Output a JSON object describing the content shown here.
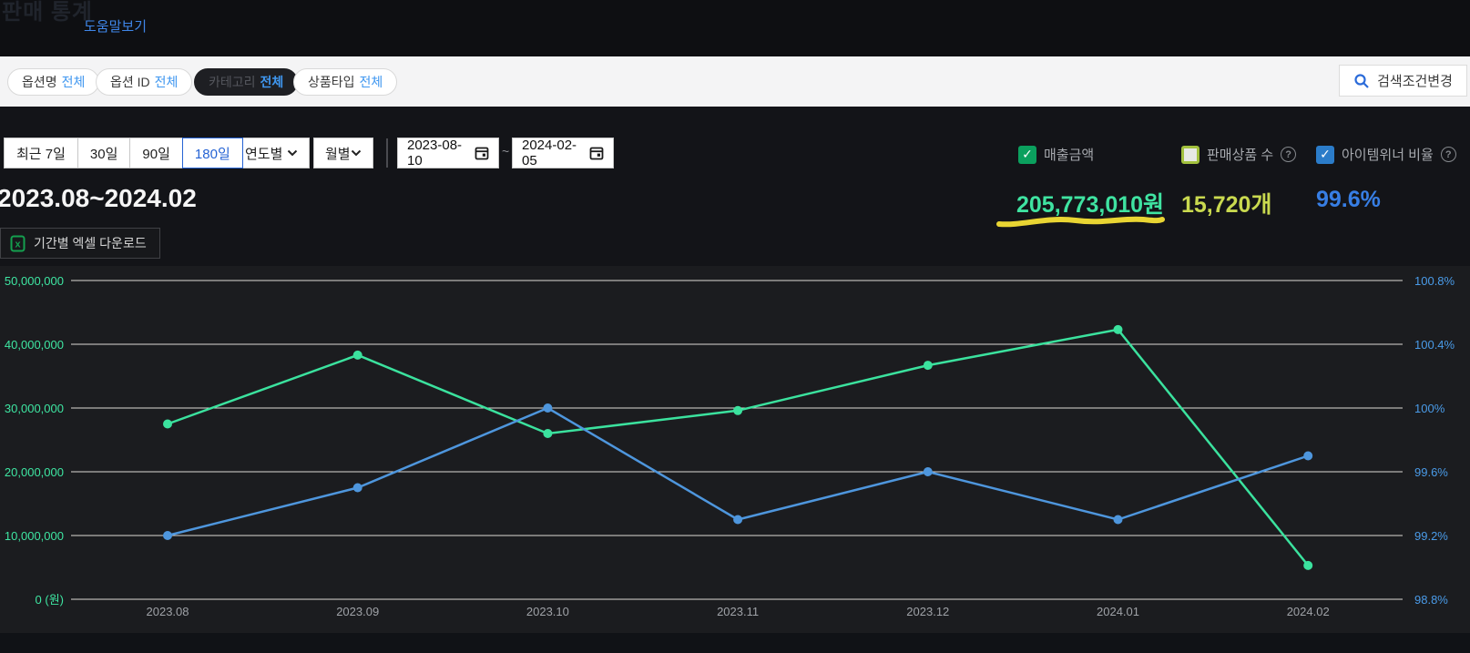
{
  "header": {
    "title": "판매 통계",
    "help_link": "도움말보기"
  },
  "filter_bar": {
    "pills": [
      {
        "label": "옵션명",
        "value": "전체",
        "selected": false
      },
      {
        "label": "옵션 ID",
        "value": "전체",
        "selected": false
      },
      {
        "label": "카테고리",
        "value": "전체",
        "selected": true
      },
      {
        "label": "상품타입",
        "value": "전체",
        "selected": false
      }
    ],
    "search_button": "검색조건변경"
  },
  "controls": {
    "range_buttons": [
      {
        "label": "최근 7일",
        "selected": false
      },
      {
        "label": "30일",
        "selected": false
      },
      {
        "label": "90일",
        "selected": false
      },
      {
        "label": "180일",
        "selected": true
      }
    ],
    "dropdowns": [
      {
        "label": "연도별"
      },
      {
        "label": "월별"
      }
    ],
    "date_from": "2023-08-10",
    "date_separator": "~",
    "date_to": "2024-02-05",
    "legend": [
      {
        "label": "매출금액",
        "checked": true,
        "color": "#0ba05e",
        "has_help": false
      },
      {
        "label": "판매상품 수",
        "checked": false,
        "color": "#a3c13e",
        "has_help": true
      },
      {
        "label": "아이템위너 비율",
        "checked": true,
        "color": "#2b7cc9",
        "has_help": true
      }
    ],
    "help_icon": "?"
  },
  "summary": {
    "period": "2023.08~2024.02",
    "stats": [
      {
        "value": "205,773,010원",
        "color": "#3fe3a1",
        "underlined": true
      },
      {
        "value": "15,720개",
        "color": "#c9d94f",
        "underlined": false
      },
      {
        "value": "99.6%",
        "color": "#377ee4",
        "underlined": false
      }
    ],
    "excel_button": "기간별 엑셀 다운로드"
  },
  "annotation": {
    "type": "hand-drawn-underline",
    "color": "#e9d533",
    "target": "205,773,010원"
  },
  "chart_data": {
    "type": "line",
    "title": "",
    "categories": [
      "2023.08",
      "2023.09",
      "2023.10",
      "2023.11",
      "2023.12",
      "2024.01",
      "2024.02"
    ],
    "series": [
      {
        "name": "매출금액",
        "axis": "left",
        "color": "#3be29e",
        "values": [
          27500000,
          38300000,
          26000000,
          29600000,
          36700000,
          42300000,
          5300000
        ]
      },
      {
        "name": "아이템위너 비율",
        "axis": "right",
        "color": "#4e96dd",
        "values": [
          99.2,
          99.5,
          100.0,
          99.3,
          99.6,
          99.3,
          99.7
        ]
      }
    ],
    "left_axis": {
      "min": 0,
      "max": 50000000,
      "label_color": "#3ee6a2",
      "ticks": [
        "50,000,000",
        "40,000,000",
        "30,000,000",
        "20,000,000",
        "10,000,000",
        "0 (원)"
      ]
    },
    "right_axis": {
      "min": 98.8,
      "max": 100.8,
      "label_color": "#4a9be8",
      "ticks": [
        "100.8%",
        "100.4%",
        "100%",
        "99.6%",
        "99.2%",
        "98.8%"
      ]
    },
    "grid": true,
    "gridline_color": "#dcdad6",
    "x_label_color": "#9fa2a7",
    "legend_position": "top-right"
  }
}
